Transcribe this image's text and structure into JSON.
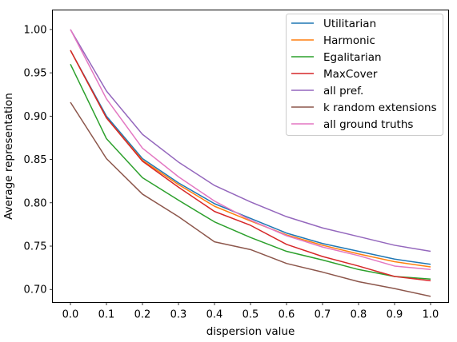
{
  "chart_data": {
    "type": "line",
    "title": "",
    "xlabel": "dispersion value",
    "ylabel": "Average representation",
    "xlim": [
      -0.05,
      1.05
    ],
    "ylim": [
      0.685,
      1.0225
    ],
    "xticks": [
      0.0,
      0.1,
      0.2,
      0.3,
      0.4,
      0.5,
      0.6,
      0.7,
      0.8,
      0.9,
      1.0
    ],
    "xtick_labels": [
      "0.0",
      "0.1",
      "0.2",
      "0.3",
      "0.4",
      "0.5",
      "0.6",
      "0.7",
      "0.8",
      "0.9",
      "1.0"
    ],
    "yticks": [
      0.7,
      0.75,
      0.8,
      0.85,
      0.9,
      0.95,
      1.0
    ],
    "ytick_labels": [
      "0.70",
      "0.75",
      "0.80",
      "0.85",
      "0.90",
      "0.95",
      "1.00"
    ],
    "grid": false,
    "legend_position": "top-right",
    "x": [
      0.0,
      0.1,
      0.2,
      0.3,
      0.4,
      0.5,
      0.6,
      0.7,
      0.8,
      0.9,
      1.0
    ],
    "series": [
      {
        "name": "Utilitarian",
        "color": "#1f77b4",
        "values": [
          0.976,
          0.9,
          0.851,
          0.823,
          0.799,
          0.782,
          0.765,
          0.753,
          0.744,
          0.735,
          0.729
        ]
      },
      {
        "name": "Harmonic",
        "color": "#ff7f0e",
        "values": [
          0.976,
          0.898,
          0.849,
          0.821,
          0.796,
          0.779,
          0.763,
          0.751,
          0.741,
          0.732,
          0.726
        ]
      },
      {
        "name": "Egalitarian",
        "color": "#2ca02c",
        "values": [
          0.96,
          0.874,
          0.829,
          0.803,
          0.778,
          0.76,
          0.744,
          0.734,
          0.723,
          0.715,
          0.712
        ]
      },
      {
        "name": "MaxCover",
        "color": "#d62728",
        "values": [
          0.976,
          0.898,
          0.848,
          0.818,
          0.79,
          0.774,
          0.752,
          0.738,
          0.727,
          0.715,
          0.71
        ]
      },
      {
        "name": "all pref.",
        "color": "#9467bd",
        "values": [
          1.0,
          0.929,
          0.879,
          0.847,
          0.82,
          0.801,
          0.784,
          0.771,
          0.761,
          0.751,
          0.744
        ]
      },
      {
        "name": "k random extensions",
        "color": "#8c564b",
        "values": [
          0.916,
          0.851,
          0.81,
          0.784,
          0.755,
          0.746,
          0.73,
          0.72,
          0.709,
          0.701,
          0.692
        ]
      },
      {
        "name": "all ground truths",
        "color": "#e377c2",
        "values": [
          1.0,
          0.92,
          0.863,
          0.83,
          0.802,
          0.78,
          0.762,
          0.749,
          0.739,
          0.727,
          0.723
        ]
      }
    ]
  }
}
